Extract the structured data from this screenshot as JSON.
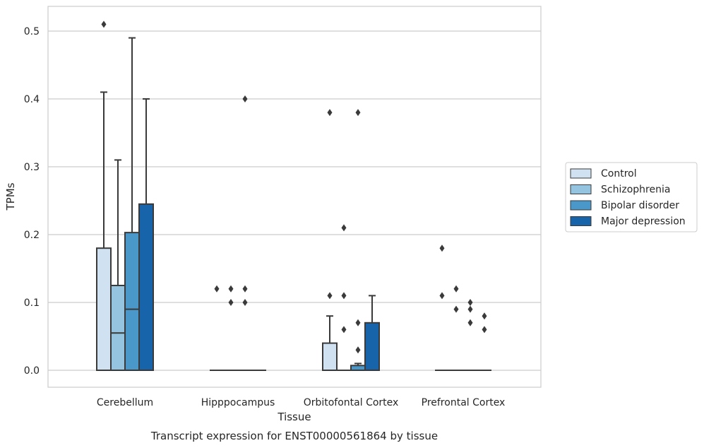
{
  "chart_data": {
    "type": "box",
    "xlabel": "Tissue",
    "ylabel": "TPMs",
    "caption": "Transcript expression for ENST00000561864 by tissue",
    "ylim": [
      -0.025,
      0.535
    ],
    "yticks": [
      0.0,
      0.1,
      0.2,
      0.3,
      0.4,
      0.5
    ],
    "ytick_labels": [
      "0.0",
      "0.1",
      "0.2",
      "0.3",
      "0.4",
      "0.5"
    ],
    "grid": "horizontal",
    "legend_position": "right",
    "categories": [
      "Cerebellum",
      "Hipppocampus",
      "Orbitofontal Cortex",
      "Prefrontal Cortex"
    ],
    "series": [
      {
        "name": "Control",
        "color": "#d0e1f2",
        "boxes": [
          {
            "q1": 0.0,
            "median": 0.0,
            "q3": 0.18,
            "whisker_low": 0.0,
            "whisker_high": 0.41,
            "outliers": [
              0.51
            ]
          },
          {
            "q1": 0.0,
            "median": 0.0,
            "q3": 0.0,
            "whisker_low": 0.0,
            "whisker_high": 0.0,
            "outliers": [
              0.12
            ]
          },
          {
            "q1": 0.0,
            "median": 0.0,
            "q3": 0.04,
            "whisker_low": 0.0,
            "whisker_high": 0.08,
            "outliers": [
              0.38,
              0.11
            ]
          },
          {
            "q1": 0.0,
            "median": 0.0,
            "q3": 0.0,
            "whisker_low": 0.0,
            "whisker_high": 0.0,
            "outliers": [
              0.18,
              0.11
            ]
          }
        ]
      },
      {
        "name": "Schizophrenia",
        "color": "#94c4df",
        "boxes": [
          {
            "q1": 0.0,
            "median": 0.055,
            "q3": 0.125,
            "whisker_low": 0.0,
            "whisker_high": 0.31,
            "outliers": []
          },
          {
            "q1": 0.0,
            "median": 0.0,
            "q3": 0.0,
            "whisker_low": 0.0,
            "whisker_high": 0.0,
            "outliers": [
              0.12,
              0.1
            ]
          },
          {
            "q1": 0.0,
            "median": 0.0,
            "q3": 0.0,
            "whisker_low": 0.0,
            "whisker_high": 0.0,
            "outliers": [
              0.21,
              0.11,
              0.06
            ]
          },
          {
            "q1": 0.0,
            "median": 0.0,
            "q3": 0.0,
            "whisker_low": 0.0,
            "whisker_high": 0.0,
            "outliers": [
              0.12,
              0.09
            ]
          }
        ]
      },
      {
        "name": "Bipolar disorder",
        "color": "#4a98c9",
        "boxes": [
          {
            "q1": 0.0,
            "median": 0.09,
            "q3": 0.203,
            "whisker_low": 0.0,
            "whisker_high": 0.49,
            "outliers": []
          },
          {
            "q1": 0.0,
            "median": 0.0,
            "q3": 0.0,
            "whisker_low": 0.0,
            "whisker_high": 0.0,
            "outliers": [
              0.4,
              0.12,
              0.1
            ]
          },
          {
            "q1": 0.0,
            "median": 0.0,
            "q3": 0.007,
            "whisker_low": 0.0,
            "whisker_high": 0.01,
            "outliers": [
              0.38,
              0.07,
              0.03
            ]
          },
          {
            "q1": 0.0,
            "median": 0.0,
            "q3": 0.0,
            "whisker_low": 0.0,
            "whisker_high": 0.0,
            "outliers": [
              0.1,
              0.09,
              0.07
            ]
          }
        ]
      },
      {
        "name": "Major depression",
        "color": "#1764ab",
        "boxes": [
          {
            "q1": 0.0,
            "median": 0.0,
            "q3": 0.245,
            "whisker_low": 0.0,
            "whisker_high": 0.4,
            "outliers": []
          },
          {
            "q1": 0.0,
            "median": 0.0,
            "q3": 0.0,
            "whisker_low": 0.0,
            "whisker_high": 0.0,
            "outliers": []
          },
          {
            "q1": 0.0,
            "median": 0.0,
            "q3": 0.07,
            "whisker_low": 0.0,
            "whisker_high": 0.11,
            "outliers": []
          },
          {
            "q1": 0.0,
            "median": 0.0,
            "q3": 0.0,
            "whisker_low": 0.0,
            "whisker_high": 0.0,
            "outliers": [
              0.08,
              0.06
            ]
          }
        ]
      }
    ]
  }
}
